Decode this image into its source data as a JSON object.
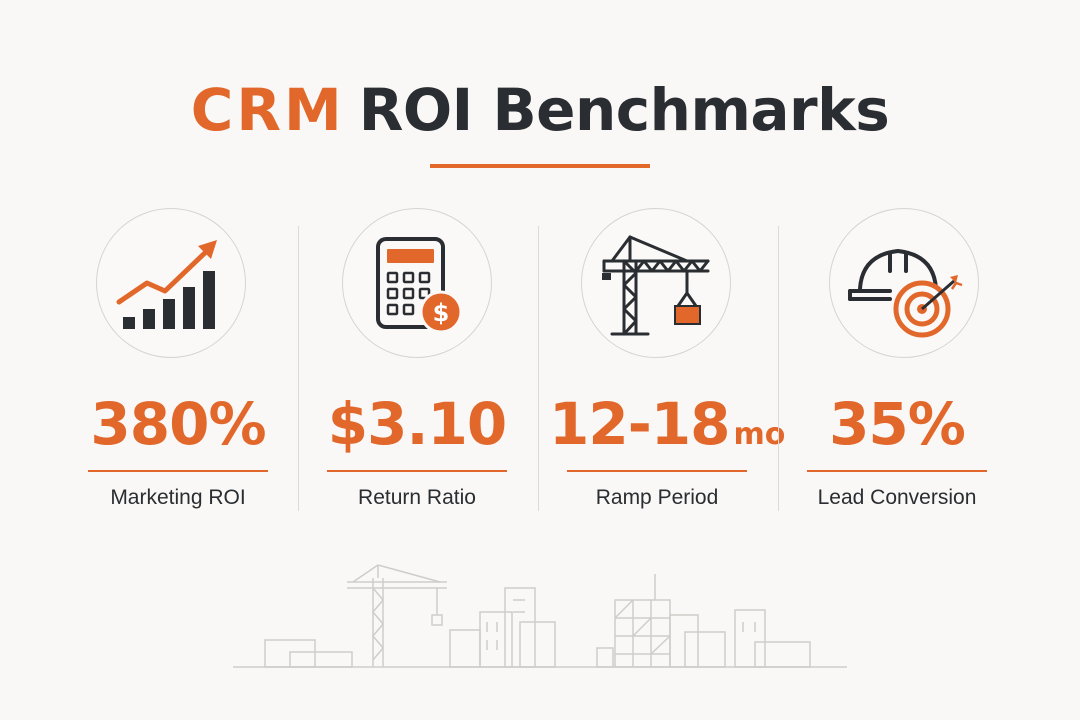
{
  "header": {
    "title_accent": "CRM",
    "title_rest": "ROI Benchmarks"
  },
  "colors": {
    "accent": "#e2672b",
    "text": "#2a2d31",
    "background": "#f9f8f6"
  },
  "stats": [
    {
      "icon": "growth-chart-icon",
      "value": "380%",
      "unit": "",
      "label": "Marketing ROI"
    },
    {
      "icon": "calculator-dollar-icon",
      "value": "$3.10",
      "unit": "",
      "label": "Return Ratio"
    },
    {
      "icon": "tower-crane-icon",
      "value": "12-18",
      "unit": "mo",
      "label": "Ramp Period"
    },
    {
      "icon": "hardhat-target-icon",
      "value": "35%",
      "unit": "",
      "label": "Lead Conversion"
    }
  ],
  "footer": {
    "illustration": "construction-skyline-icon"
  }
}
